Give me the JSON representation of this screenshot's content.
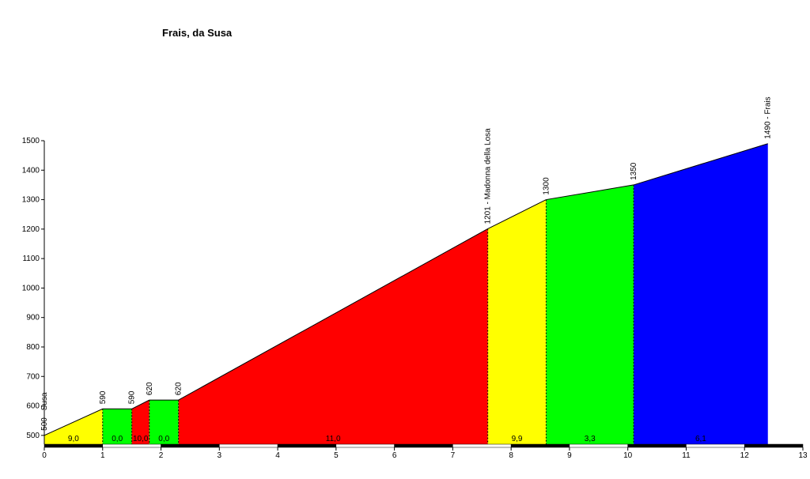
{
  "chart_data": {
    "type": "profile",
    "title": "Frais, da Susa",
    "x": [
      0,
      1,
      1.5,
      1.8,
      2.3,
      7.6,
      8.6,
      10.1,
      12.4
    ],
    "values": [
      500,
      590,
      590,
      620,
      620,
      1201,
      1300,
      1350,
      1490
    ],
    "point_labels": [
      "500 - Susa",
      "590",
      "590",
      "620",
      "620",
      "1201 - Madonna della Losa",
      "1300",
      "1350",
      "1490 - Frais"
    ],
    "segment_colors": [
      "#ffff00",
      "#00ff00",
      "#ff0000",
      "#00ff00",
      "#ff0000",
      "#ffff00",
      "#00ff00",
      "#0000ff"
    ],
    "segment_grades": [
      9.0,
      0.0,
      10.0,
      0.0,
      11.0,
      9.9,
      3.3,
      6.1
    ],
    "segment_grade_labels": [
      "9,0",
      "0,0",
      "10,0",
      "0,0",
      "11,0",
      "9,9",
      "3,3",
      "6,1"
    ],
    "xlim": [
      0,
      13
    ],
    "xticks": [
      0,
      1,
      2,
      3,
      4,
      5,
      6,
      7,
      8,
      9,
      10,
      11,
      12,
      13
    ],
    "ylim": [
      470,
      1500
    ],
    "yticks": [
      500,
      600,
      700,
      800,
      900,
      1000,
      1100,
      1200,
      1300,
      1400,
      1500
    ]
  }
}
